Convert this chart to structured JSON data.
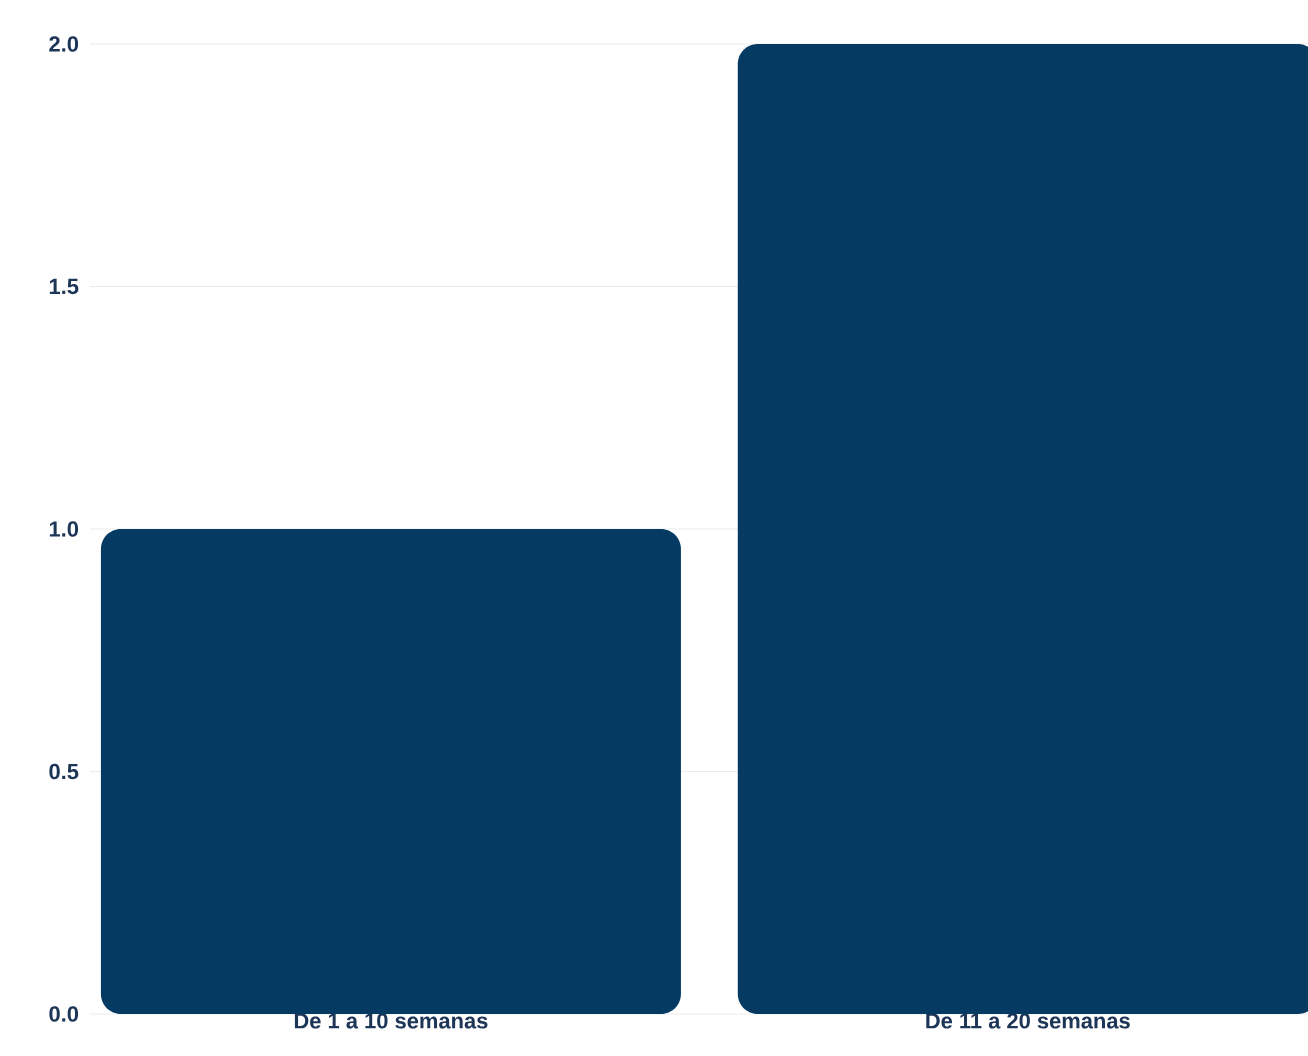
{
  "chart_data": {
    "type": "bar",
    "categories": [
      "De 1 a 10 semanas",
      "De 11 a 20 semanas"
    ],
    "values": [
      1.0,
      2.0
    ],
    "color": "#053a63",
    "ylim": [
      0,
      2.0
    ],
    "yticks": [
      {
        "value": 0,
        "label": "0.0"
      },
      {
        "value": 0.5,
        "label": "0.5"
      },
      {
        "value": 1.0,
        "label": "1.0"
      },
      {
        "value": 1.5,
        "label": "1.5"
      },
      {
        "value": 2.0,
        "label": "2.0"
      }
    ],
    "grid": "y"
  }
}
